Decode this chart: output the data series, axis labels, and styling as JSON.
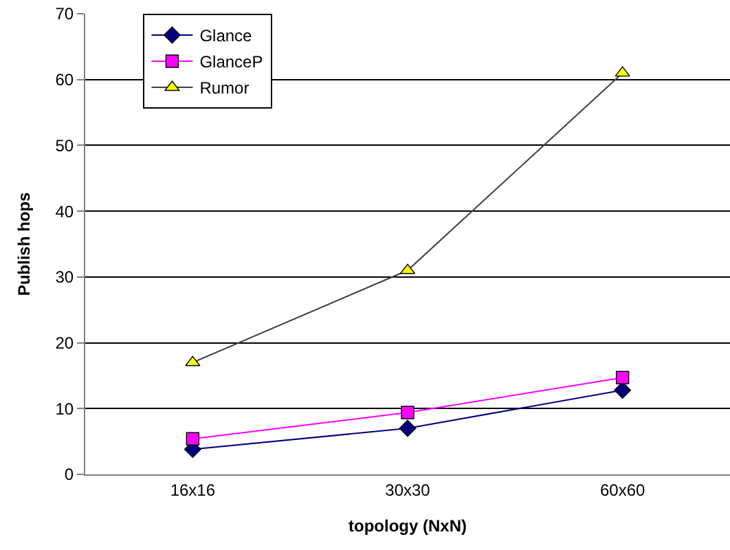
{
  "chart_data": {
    "type": "line",
    "xlabel": "topology (NxN)",
    "ylabel": "Publish hops",
    "categories": [
      "16x16",
      "30x30",
      "60x60"
    ],
    "series": [
      {
        "name": "Glance",
        "color": "#000080",
        "marker": "diamond",
        "values": [
          3.8,
          7,
          12.8
        ]
      },
      {
        "name": "GlanceP",
        "color": "#ff00ff",
        "marker": "square",
        "values": [
          5.4,
          9.4,
          14.7
        ]
      },
      {
        "name": "Rumor",
        "color": "#ffff00",
        "marker": "triangle",
        "values": [
          17,
          31,
          61
        ]
      }
    ],
    "ylim": [
      0,
      70
    ],
    "yticks": [
      0,
      10,
      20,
      30,
      40,
      50,
      60,
      70
    ],
    "grid": "y",
    "legend": "top left",
    "line_style": "solid"
  }
}
